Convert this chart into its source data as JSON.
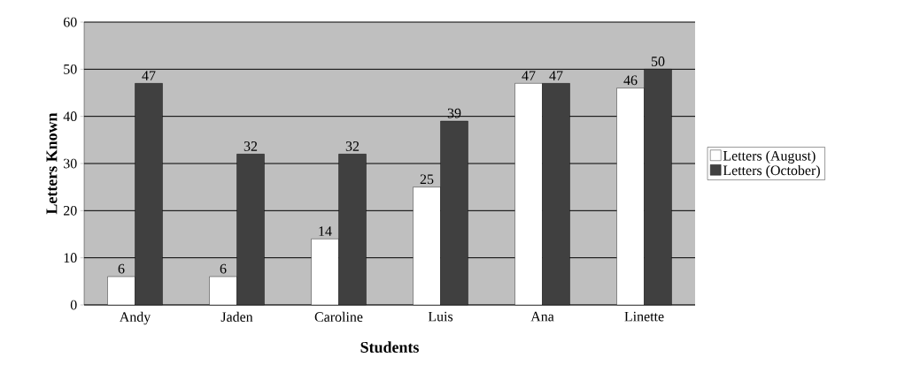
{
  "chart_data": {
    "type": "bar",
    "xlabel": "Students",
    "ylabel": "Letters Known",
    "categories": [
      "Andy",
      "Jaden",
      "Caroline",
      "Luis",
      "Ana",
      "Linette"
    ],
    "series": [
      {
        "name": "Letters (August)",
        "color": "#ffffff",
        "values": [
          6,
          6,
          14,
          25,
          47,
          46
        ]
      },
      {
        "name": "Letters (October)",
        "color": "#404040",
        "values": [
          47,
          32,
          32,
          39,
          47,
          50
        ]
      }
    ],
    "ylim": [
      0,
      60
    ],
    "yticks": [
      0,
      10,
      20,
      30,
      40,
      50,
      60
    ],
    "grid": "y",
    "legend": "right",
    "data_labels": true
  }
}
